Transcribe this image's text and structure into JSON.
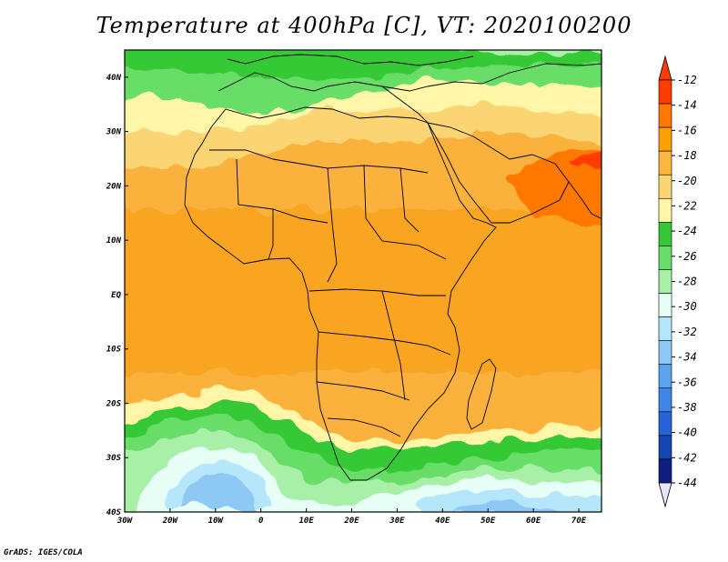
{
  "title": "Temperature at 400hPa [C], VT: 2020100200",
  "footer": "GrADS: IGES/COLA",
  "map": {
    "lon_range": [
      -30,
      75
    ],
    "lat_range": [
      -40,
      45
    ],
    "lon_ticks": [
      {
        "value": -30,
        "label": "30W"
      },
      {
        "value": -20,
        "label": "20W"
      },
      {
        "value": -10,
        "label": "10W"
      },
      {
        "value": 0,
        "label": "0"
      },
      {
        "value": 10,
        "label": "10E"
      },
      {
        "value": 20,
        "label": "20E"
      },
      {
        "value": 30,
        "label": "30E"
      },
      {
        "value": 40,
        "label": "40E"
      },
      {
        "value": 50,
        "label": "50E"
      },
      {
        "value": 60,
        "label": "60E"
      },
      {
        "value": 70,
        "label": "70E"
      }
    ],
    "lat_ticks": [
      {
        "value": 40,
        "label": "40N"
      },
      {
        "value": 30,
        "label": "30N"
      },
      {
        "value": 20,
        "label": "20N"
      },
      {
        "value": 10,
        "label": "10N"
      },
      {
        "value": 0,
        "label": "EQ"
      },
      {
        "value": -10,
        "label": "10S"
      },
      {
        "value": -20,
        "label": "20S"
      },
      {
        "value": -30,
        "label": "30S"
      },
      {
        "value": -40,
        "label": "40S"
      }
    ]
  },
  "colorbar": {
    "levels": [
      -12,
      -14,
      -16,
      -18,
      -20,
      -22,
      -24,
      -26,
      -28,
      -30,
      -32,
      -34,
      -36,
      -38,
      -40,
      -42,
      -44
    ],
    "colors": [
      "#ff3c00",
      "#ff7800",
      "#fba000",
      "#f9b640",
      "#fbd473",
      "#fff6a8",
      "#34c934",
      "#68dd68",
      "#a8f0a8",
      "#e7fff6",
      "#b5e6fb",
      "#8ec8f5",
      "#5aa4ef",
      "#3f86e6",
      "#2563d6",
      "#1446b4",
      "#0f1f80"
    ],
    "top_arrow_color": "#ff3c00",
    "bottom_arrow_color": "#e6e6ff"
  }
}
